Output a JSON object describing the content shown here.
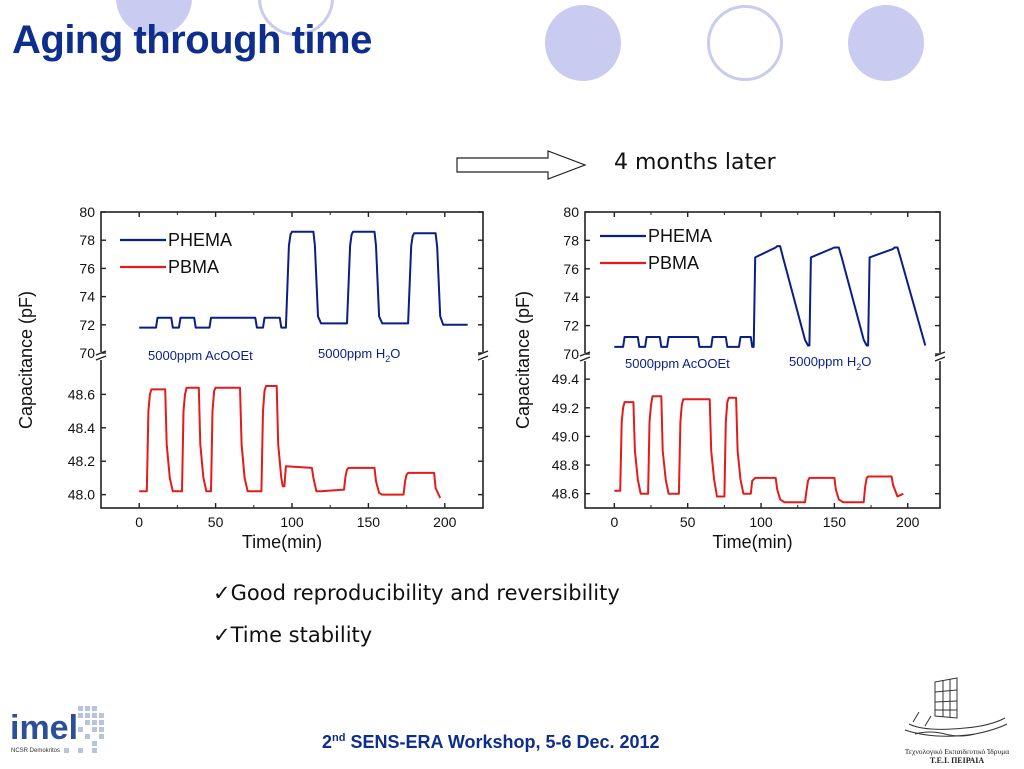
{
  "slide": {
    "title": "Aging through time",
    "later_label": "4 months later",
    "bullets": [
      {
        "check": "✓",
        "text": "Good reproducibility and reversibility"
      },
      {
        "check": "✓",
        "text": "Time stability"
      }
    ],
    "footer": {
      "pre": "2",
      "sup": "nd",
      "post": " SENS-ERA Workshop, 5-6 Dec. 2012"
    },
    "logos": {
      "imel": {
        "word": "imel",
        "sub": "NCSR Demokritos"
      },
      "tei": {
        "line1": "Τεχνολογικό Εκπαιδευτικό Ίδρυμα",
        "line2": "Τ.Ε.Ι. ΠΕΙΡΑΙΑ"
      }
    },
    "colors": {
      "title": "#0d2e8c",
      "phema": "#0a1f86",
      "pbma": "#e31b1b",
      "circle": "#c9cbf0"
    }
  },
  "chart_data": [
    {
      "type": "line",
      "xlabel": "Time(min)",
      "ylabel": "Capacitance (pF)",
      "xlim": [
        -25,
        225
      ],
      "xticks": [
        0,
        50,
        100,
        150,
        200
      ],
      "ylim_top": [
        70,
        80
      ],
      "yticks_top": [
        70,
        72,
        74,
        76,
        78,
        80
      ],
      "ylim_bottom": [
        47.92,
        48.74
      ],
      "yticks_bottom": [
        48.0,
        48.2,
        48.4,
        48.6
      ],
      "yticks_bottom_labels": [
        "48.0",
        "48.2",
        "48.4",
        "48.6"
      ],
      "legend_position": "top-left",
      "annotations": [
        {
          "text": "5000ppm AcOOEt"
        },
        {
          "text_pre": "5000ppm H",
          "sub": "2",
          "text_post": "O"
        }
      ],
      "series": [
        {
          "name": "PHEMA",
          "axis": "top",
          "x": [
            0,
            11,
            12,
            21,
            22,
            26,
            27,
            36,
            37,
            46,
            47,
            76,
            77,
            81,
            82,
            92,
            93,
            96,
            98,
            99,
            100,
            114,
            115,
            117,
            119,
            136,
            138,
            139,
            140,
            154,
            155,
            157,
            159,
            176,
            178,
            179,
            180,
            194,
            195,
            197,
            199,
            215
          ],
          "y": [
            71.8,
            71.8,
            72.5,
            72.5,
            71.8,
            71.8,
            72.5,
            72.5,
            71.8,
            71.8,
            72.5,
            72.5,
            71.8,
            71.8,
            72.5,
            72.5,
            71.8,
            71.8,
            77.6,
            78.4,
            78.6,
            78.6,
            77.6,
            72.6,
            72.1,
            72.1,
            77.6,
            78.4,
            78.6,
            78.6,
            77.6,
            72.6,
            72.1,
            72.1,
            77.6,
            78.3,
            78.5,
            78.5,
            77.5,
            72.6,
            72.0,
            72.0
          ]
        },
        {
          "name": "PBMA",
          "axis": "bottom",
          "x": [
            0,
            5,
            6,
            7,
            8,
            17,
            18,
            20,
            22,
            28,
            29,
            30,
            31,
            39,
            40,
            42,
            44,
            47,
            48,
            49,
            50,
            66,
            67,
            69,
            71,
            80,
            81,
            82,
            83,
            90,
            91,
            93,
            94,
            95,
            96,
            113,
            114,
            116,
            119,
            134,
            135,
            136,
            137,
            154,
            155,
            157,
            159,
            173,
            174,
            175,
            176,
            193,
            194,
            197
          ],
          "y": [
            48.02,
            48.02,
            48.5,
            48.6,
            48.63,
            48.63,
            48.3,
            48.1,
            48.02,
            48.02,
            48.5,
            48.6,
            48.64,
            48.64,
            48.3,
            48.1,
            48.02,
            48.02,
            48.5,
            48.62,
            48.64,
            48.64,
            48.3,
            48.1,
            48.02,
            48.02,
            48.5,
            48.62,
            48.65,
            48.65,
            48.3,
            48.1,
            48.05,
            48.05,
            48.17,
            48.16,
            48.1,
            48.02,
            48.02,
            48.03,
            48.11,
            48.15,
            48.16,
            48.16,
            48.08,
            48.01,
            48.0,
            48.0,
            48.08,
            48.12,
            48.13,
            48.13,
            48.04,
            47.98
          ]
        }
      ]
    },
    {
      "type": "line",
      "xlabel": "Time(min)",
      "ylabel": "Capacitance (pF)",
      "xlim": [
        -20,
        222
      ],
      "xticks": [
        0,
        50,
        100,
        150,
        200
      ],
      "ylim_top": [
        70,
        80
      ],
      "yticks_top": [
        70,
        72,
        74,
        76,
        78,
        80
      ],
      "ylim_bottom": [
        48.5,
        49.45
      ],
      "yticks_bottom": [
        48.6,
        48.8,
        49.0,
        49.2,
        49.4
      ],
      "yticks_bottom_labels": [
        "48.6",
        "48.8",
        "49.0",
        "49.2",
        "49.4"
      ],
      "legend_position": "top-left",
      "annotations": [
        {
          "text": "5000ppm AcOOEt"
        },
        {
          "text_pre": "5000ppm H",
          "sub": "2",
          "text_post": "O"
        }
      ],
      "series": [
        {
          "name": "PHEMA",
          "axis": "top",
          "x": [
            0,
            6,
            7,
            16,
            17,
            21,
            22,
            31,
            32,
            36,
            37,
            57,
            58,
            66,
            67,
            76,
            77,
            85,
            86,
            93,
            94,
            95,
            96,
            110,
            111,
            113,
            115,
            130,
            132,
            133,
            134,
            150,
            151,
            153,
            155,
            170,
            172,
            173,
            174,
            190,
            191,
            193,
            195,
            212
          ],
          "y": [
            70.5,
            70.5,
            71.2,
            71.2,
            70.5,
            70.5,
            71.2,
            71.2,
            70.5,
            70.5,
            71.2,
            71.2,
            70.5,
            70.5,
            71.2,
            71.2,
            70.5,
            70.5,
            71.2,
            71.2,
            70.5,
            70.5,
            76.8,
            77.5,
            77.6,
            77.6,
            76.8,
            71.0,
            70.6,
            70.6,
            76.8,
            77.5,
            77.5,
            77.5,
            76.8,
            71.0,
            70.6,
            70.6,
            76.8,
            77.4,
            77.5,
            77.5,
            76.8,
            70.6
          ]
        },
        {
          "name": "PBMA",
          "axis": "bottom",
          "x": [
            0,
            4,
            5,
            6,
            7,
            13,
            14,
            16,
            18,
            23,
            24,
            25,
            26,
            32,
            33,
            35,
            37,
            44,
            45,
            46,
            47,
            65,
            66,
            68,
            70,
            75,
            76,
            77,
            78,
            83,
            84,
            86,
            88,
            93,
            94,
            95,
            96,
            110,
            111,
            113,
            116,
            130,
            131,
            132,
            133,
            150,
            151,
            153,
            156,
            170,
            171,
            172,
            173,
            189,
            190,
            193,
            197
          ],
          "y": [
            48.62,
            48.62,
            49.1,
            49.2,
            49.24,
            49.24,
            48.9,
            48.7,
            48.6,
            48.6,
            49.1,
            49.22,
            49.28,
            49.28,
            48.9,
            48.7,
            48.6,
            48.6,
            49.1,
            49.22,
            49.26,
            49.26,
            48.9,
            48.7,
            48.58,
            48.58,
            49.1,
            49.24,
            49.27,
            49.27,
            48.9,
            48.7,
            48.6,
            48.6,
            48.69,
            48.7,
            48.71,
            48.71,
            48.63,
            48.56,
            48.54,
            48.54,
            48.62,
            48.69,
            48.71,
            48.71,
            48.63,
            48.56,
            48.54,
            48.54,
            48.65,
            48.71,
            48.72,
            48.72,
            48.66,
            48.58,
            48.6
          ]
        }
      ]
    }
  ]
}
